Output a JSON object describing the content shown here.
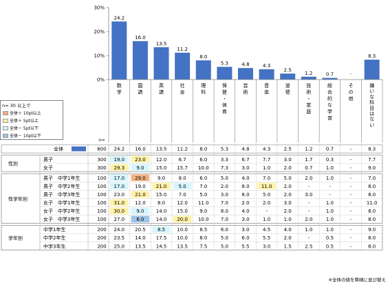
{
  "chart_data": {
    "type": "bar",
    "yaxis": {
      "ticks": [
        "0%",
        "10%",
        "20%",
        "30%"
      ],
      "ylim": [
        0,
        30
      ]
    },
    "n_label": "n=",
    "categories": [
      "数学",
      "国語",
      "英語",
      "社会",
      "理科",
      "保健・体育",
      "芸術",
      "音楽",
      "道徳",
      "技術・家庭",
      "総合的な学習",
      "その他",
      "嫌いな科目はない"
    ],
    "overall": {
      "label": "全体",
      "n": "600",
      "values": [
        24.2,
        16.0,
        13.5,
        11.2,
        8.0,
        5.3,
        4.8,
        4.3,
        2.5,
        1.2,
        0.7,
        null,
        8.3
      ],
      "labels": [
        "24.2",
        "16.0",
        "13.5",
        "11.2",
        "8.0",
        "5.3",
        "4.8",
        "4.3",
        "2.5",
        "1.2",
        "0.7",
        "-",
        "8.3"
      ]
    },
    "bar_color": "#4472C4",
    "legend": {
      "title": "n= 30 以上で",
      "items": [
        {
          "label": "全体＋ 10pt以上",
          "color": "#F4B183"
        },
        {
          "label": "全体＋ 5pt以上",
          "color": "#FFF2A8"
        },
        {
          "label": "全体－ 5pt以下",
          "color": "#D6F5FF"
        },
        {
          "label": "全体－ 10pt以下",
          "color": "#9DC3E6"
        }
      ]
    },
    "groups": [
      {
        "label": "性別",
        "rows": [
          {
            "label": "男子",
            "n": "300",
            "values": [
              "19.0",
              "23.0",
              "12.0",
              "6.7",
              "6.0",
              "3.3",
              "6.7",
              "7.7",
              "3.0",
              "1.7",
              "0.3",
              "-",
              "7.7"
            ],
            "colors": [
              "#D6F5FF",
              "#FFF2A8",
              null,
              null,
              null,
              null,
              null,
              null,
              null,
              null,
              null,
              null,
              null
            ]
          },
          {
            "label": "女子",
            "n": "300",
            "values": [
              "29.3",
              "9.0",
              "15.0",
              "15.7",
              "10.0",
              "7.3",
              "3.0",
              "1.0",
              "2.0",
              "0.7",
              "1.0",
              "-",
              "9.0"
            ],
            "colors": [
              "#FFF2A8",
              "#D6F5FF",
              null,
              null,
              null,
              null,
              null,
              null,
              null,
              null,
              null,
              null,
              null
            ]
          }
        ]
      },
      {
        "label": "性学年別",
        "rows": [
          {
            "label": "男子　中学1年生",
            "n": "100",
            "values": [
              "17.0",
              "29.0",
              "9.0",
              "8.0",
              "6.0",
              "5.0",
              "4.0",
              "7.0",
              "5.0",
              "2.0",
              "1.0",
              "-",
              "7.0"
            ],
            "colors": [
              "#D6F5FF",
              "#F4B183",
              null,
              null,
              null,
              null,
              null,
              null,
              null,
              null,
              null,
              null,
              null
            ]
          },
          {
            "label": "男子　中学2年生",
            "n": "100",
            "values": [
              "17.0",
              "19.0",
              "21.0",
              "5.0",
              "7.0",
              "2.0",
              "8.0",
              "11.0",
              "2.0",
              "-",
              "-",
              "-",
              "8.0"
            ],
            "colors": [
              "#D6F5FF",
              null,
              "#FFF2A8",
              "#D6F5FF",
              null,
              null,
              null,
              "#FFF2A8",
              null,
              null,
              null,
              null,
              null
            ]
          },
          {
            "label": "男子　中学3年生",
            "n": "100",
            "values": [
              "23.0",
              "21.0",
              "15.0",
              "7.0",
              "5.0",
              "3.0",
              "8.0",
              "5.0",
              "2.0",
              "3.0",
              "-",
              "-",
              "8.0"
            ],
            "colors": [
              null,
              "#FFF2A8",
              null,
              null,
              null,
              null,
              null,
              null,
              null,
              null,
              null,
              null,
              null
            ]
          },
          {
            "label": "女子　中学1年生",
            "n": "100",
            "values": [
              "31.0",
              "12.0",
              "8.0",
              "12.0",
              "11.0",
              "7.0",
              "2.0",
              "2.0",
              "3.0",
              "-",
              "1.0",
              "-",
              "11.0"
            ],
            "colors": [
              "#FFF2A8",
              null,
              null,
              null,
              null,
              null,
              null,
              null,
              null,
              null,
              null,
              null,
              null
            ]
          },
          {
            "label": "女子　中学2年生",
            "n": "100",
            "values": [
              "30.0",
              "9.0",
              "14.0",
              "15.0",
              "9.0",
              "8.0",
              "4.0",
              "-",
              "2.0",
              "-",
              "1.0",
              "-",
              "8.0"
            ],
            "colors": [
              "#FFF2A8",
              "#D6F5FF",
              null,
              null,
              null,
              null,
              null,
              null,
              null,
              null,
              null,
              null,
              null
            ]
          },
          {
            "label": "女子　中学3年生",
            "n": "100",
            "values": [
              "27.0",
              "6.0",
              "14.0",
              "20.0",
              "10.0",
              "7.0",
              "3.0",
              "1.0",
              "1.0",
              "2.0",
              "1.0",
              "-",
              "8.0"
            ],
            "colors": [
              null,
              "#9DC3E6",
              null,
              "#FFF2A8",
              null,
              null,
              null,
              null,
              null,
              null,
              null,
              null,
              null
            ]
          }
        ]
      },
      {
        "label": "学年別",
        "rows": [
          {
            "label": "中学1年生",
            "n": "200",
            "values": [
              "24.0",
              "20.5",
              "8.5",
              "10.0",
              "8.5",
              "6.0",
              "3.0",
              "4.5",
              "4.0",
              "1.0",
              "1.0",
              "-",
              "9.0"
            ],
            "colors": [
              null,
              null,
              "#D6F5FF",
              null,
              null,
              null,
              null,
              null,
              null,
              null,
              null,
              null,
              null
            ]
          },
          {
            "label": "中学2年生",
            "n": "200",
            "values": [
              "23.5",
              "14.0",
              "17.5",
              "10.0",
              "8.0",
              "5.0",
              "6.0",
              "5.5",
              "2.0",
              "-",
              "0.5",
              "-",
              "8.0"
            ],
            "colors": [
              null,
              null,
              null,
              null,
              null,
              null,
              null,
              null,
              null,
              null,
              null,
              null,
              null
            ]
          },
          {
            "label": "中学3年生",
            "n": "200",
            "values": [
              "25.0",
              "13.5",
              "14.5",
              "13.5",
              "7.5",
              "5.0",
              "5.5",
              "3.0",
              "1.5",
              "2.5",
              "0.5",
              "-",
              "8.0"
            ],
            "colors": [
              null,
              null,
              null,
              null,
              null,
              null,
              null,
              null,
              null,
              null,
              null,
              null,
              null
            ]
          }
        ]
      }
    ],
    "footnote": "※全体の値を降順に並び替え"
  }
}
